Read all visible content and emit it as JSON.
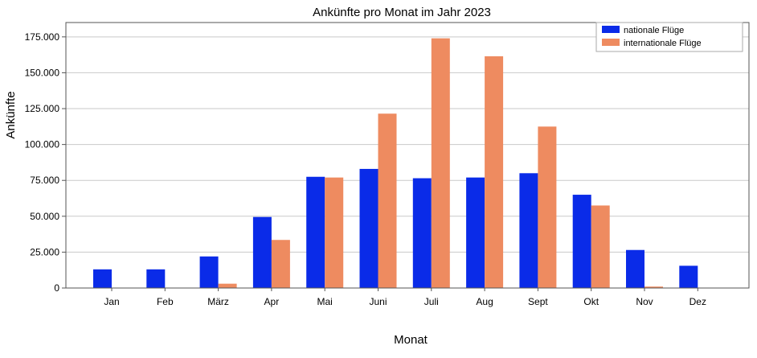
{
  "chart_data": {
    "type": "bar",
    "title": "Ankünfte pro Monat im Jahr 2023",
    "xlabel": "Monat",
    "ylabel": "Ankünfte",
    "categories": [
      "Jan",
      "Feb",
      "März",
      "Apr",
      "Mai",
      "Juni",
      "Juli",
      "Aug",
      "Sept",
      "Okt",
      "Nov",
      "Dez"
    ],
    "series": [
      {
        "name": "nationale Flüge",
        "color": "#0a2be8",
        "values": [
          13000,
          13000,
          22000,
          49500,
          77500,
          83000,
          76500,
          77000,
          80000,
          65000,
          26500,
          15500
        ]
      },
      {
        "name": "internationale Flüge",
        "color": "#ee8b60",
        "values": [
          0,
          0,
          3000,
          33500,
          77000,
          121500,
          174000,
          161500,
          112500,
          57500,
          1000,
          0
        ]
      }
    ],
    "ylim": [
      0,
      185000
    ],
    "yticks": [
      0,
      25000,
      50000,
      75000,
      100000,
      125000,
      150000,
      175000
    ],
    "ytick_labels": [
      "0",
      "25.000",
      "50.000",
      "75.000",
      "100.000",
      "125.000",
      "150.000",
      "175.000"
    ],
    "grid": "horizontal",
    "legend_position": "top-right"
  }
}
